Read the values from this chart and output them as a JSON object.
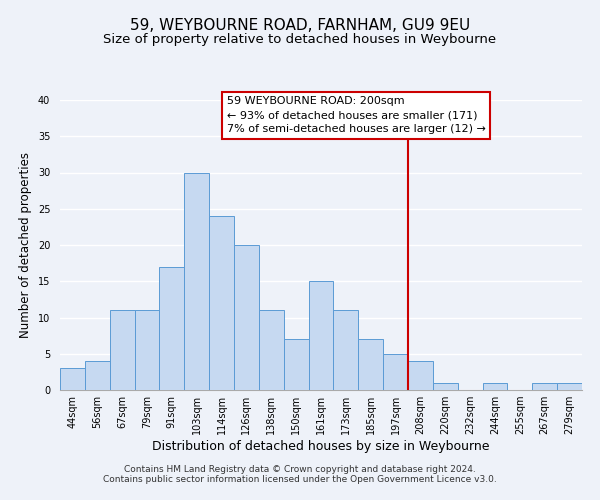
{
  "title": "59, WEYBOURNE ROAD, FARNHAM, GU9 9EU",
  "subtitle": "Size of property relative to detached houses in Weybourne",
  "xlabel": "Distribution of detached houses by size in Weybourne",
  "ylabel": "Number of detached properties",
  "bin_labels": [
    "44sqm",
    "56sqm",
    "67sqm",
    "79sqm",
    "91sqm",
    "103sqm",
    "114sqm",
    "126sqm",
    "138sqm",
    "150sqm",
    "161sqm",
    "173sqm",
    "185sqm",
    "197sqm",
    "208sqm",
    "220sqm",
    "232sqm",
    "244sqm",
    "255sqm",
    "267sqm",
    "279sqm"
  ],
  "bar_heights": [
    3,
    4,
    11,
    11,
    17,
    30,
    24,
    20,
    11,
    7,
    15,
    11,
    7,
    5,
    4,
    1,
    0,
    1,
    0,
    1,
    1
  ],
  "bar_color": "#c6d9f1",
  "bar_edge_color": "#5b9bd5",
  "vline_x_index": 13.5,
  "vline_color": "#cc0000",
  "ylim": [
    0,
    40
  ],
  "annotation_title": "59 WEYBOURNE ROAD: 200sqm",
  "annotation_line1": "← 93% of detached houses are smaller (171)",
  "annotation_line2": "7% of semi-detached houses are larger (12) →",
  "annotation_box_color": "#ffffff",
  "annotation_box_edge": "#cc0000",
  "footnote1": "Contains HM Land Registry data © Crown copyright and database right 2024.",
  "footnote2": "Contains public sector information licensed under the Open Government Licence v3.0.",
  "background_color": "#eef2f9",
  "title_fontsize": 11,
  "subtitle_fontsize": 9.5,
  "xlabel_fontsize": 9,
  "ylabel_fontsize": 8.5,
  "tick_fontsize": 7,
  "annotation_fontsize": 8,
  "footnote_fontsize": 6.5
}
